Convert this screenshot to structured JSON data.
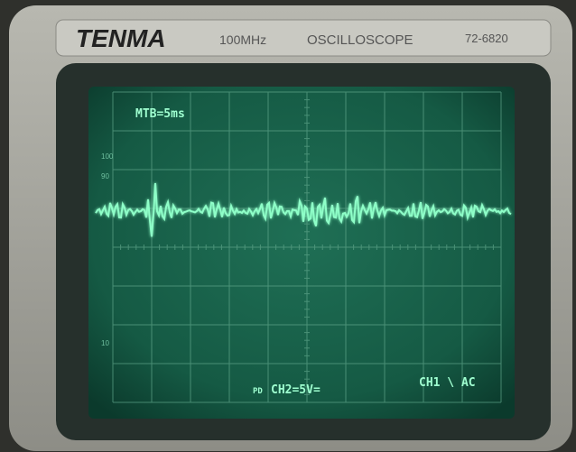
{
  "header": {
    "brand": "TENMA",
    "bandwidth": "100MHz",
    "product": "OSCILLOSCOPE",
    "model": "72-6820"
  },
  "screen": {
    "timebase": "MTB=5ms",
    "channel2": "CH2=5V=",
    "channel2_prefix": "PD",
    "channel1": "CH1 \\ AC",
    "graticule_labels": [
      "100",
      "90",
      "10"
    ]
  }
}
